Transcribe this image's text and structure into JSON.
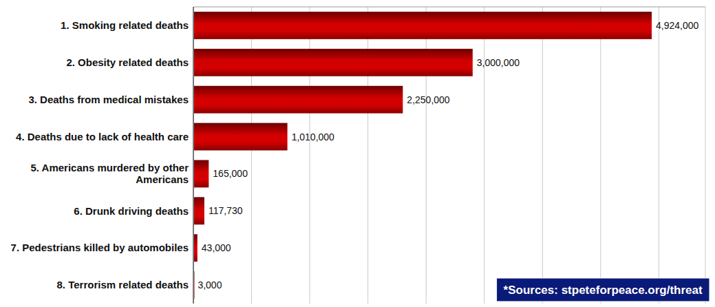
{
  "chart_data": {
    "type": "bar",
    "orientation": "horizontal",
    "categories": [
      "1. Smoking related deaths",
      "2. Obesity related deaths",
      "3. Deaths from medical mistakes",
      "4. Deaths due to lack of health care",
      "5. Americans murdered by other Americans",
      "6. Drunk driving deaths",
      "7. Pedestrians killed by automobiles",
      "8. Terrorism related deaths"
    ],
    "values": [
      4924000,
      3000000,
      2250000,
      1010000,
      165000,
      117730,
      43000,
      3000
    ],
    "value_labels": [
      "4,924,000",
      "3,000,000",
      "2,250,000",
      "1,010,000",
      "165,000",
      "117,730",
      "43,000",
      "3,000"
    ],
    "data_labels": true,
    "color": "#d40000",
    "xlim": [
      0,
      5500000
    ],
    "xticks": [
      0,
      625000,
      1250000,
      1875000,
      2500000,
      3125000,
      3750000,
      4375000,
      5000000
    ],
    "grid": true,
    "tick_labels": false,
    "annotations": [
      "*Sources: stpeteforpeace.org/threat"
    ]
  }
}
